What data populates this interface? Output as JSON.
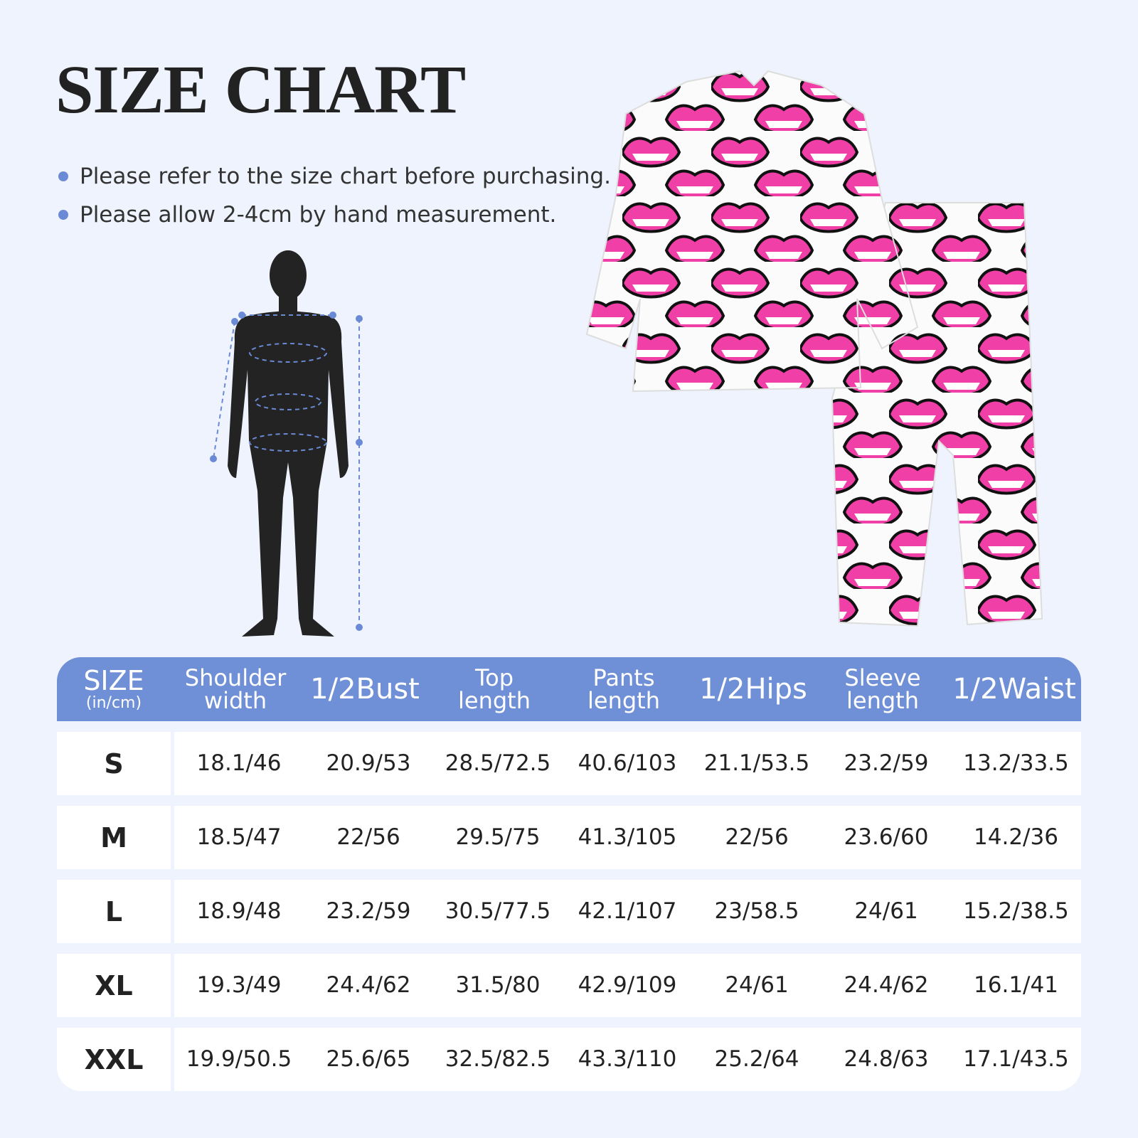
{
  "title": "SIZE CHART",
  "notes": [
    "Please refer to the size chart before purchasing.",
    "Please allow 2-4cm by hand measurement."
  ],
  "table": {
    "header": {
      "size": "SIZE",
      "unit": "(in/cm)",
      "columns": [
        "Shoulder width",
        "1/2Bust",
        "Top length",
        "Pants length",
        "1/2Hips",
        "Sleeve length",
        "1/2Waist"
      ]
    },
    "rows": [
      {
        "size": "S",
        "values": [
          "18.1/46",
          "20.9/53",
          "28.5/72.5",
          "40.6/103",
          "21.1/53.5",
          "23.2/59",
          "13.2/33.5"
        ]
      },
      {
        "size": "M",
        "values": [
          "18.5/47",
          "22/56",
          "29.5/75",
          "41.3/105",
          "22/56",
          "23.6/60",
          "14.2/36"
        ]
      },
      {
        "size": "L",
        "values": [
          "18.9/48",
          "23.2/59",
          "30.5/77.5",
          "42.1/107",
          "23/58.5",
          "24/61",
          "15.2/38.5"
        ]
      },
      {
        "size": "XL",
        "values": [
          "19.3/49",
          "24.4/62",
          "31.5/80",
          "42.9/109",
          "24/61",
          "24.4/62",
          "16.1/41"
        ]
      },
      {
        "size": "XXL",
        "values": [
          "19.9/50.5",
          "25.6/65",
          "32.5/82.5",
          "43.3/110",
          "25.2/64",
          "24.8/63",
          "17.1/43.5"
        ]
      }
    ]
  }
}
